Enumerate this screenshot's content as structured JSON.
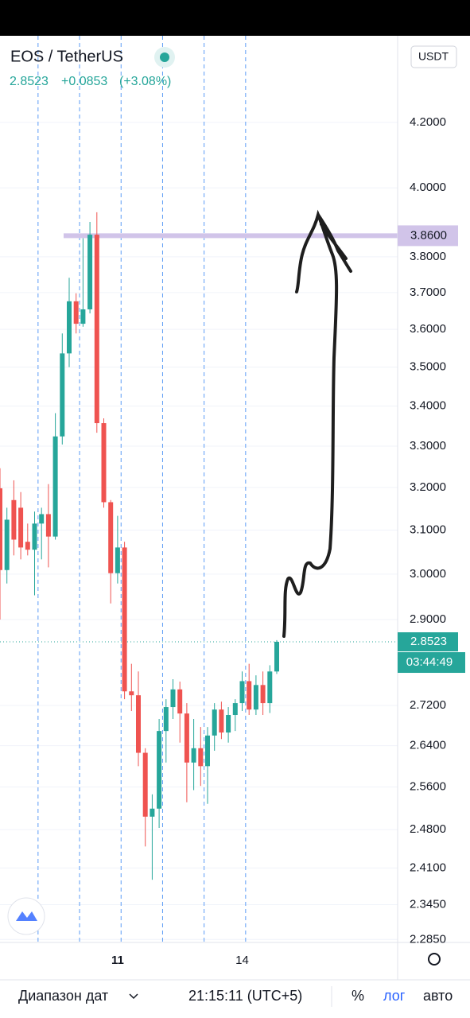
{
  "header": {
    "symbol": "EOS / TetherUS",
    "price": "2.8523",
    "change": "+0.0853",
    "change_pct": "(+3.08%)",
    "currency": "USDT"
  },
  "chart_data": {
    "type": "candlestick",
    "categories": [
      null,
      null,
      null,
      null,
      null,
      null,
      null,
      null,
      null,
      null,
      null,
      null,
      null,
      null,
      null,
      null,
      null,
      "11",
      null,
      null,
      null,
      null,
      null,
      null,
      null,
      null,
      null,
      null,
      null,
      null,
      null,
      null,
      null,
      null,
      null,
      "14",
      null,
      null,
      null,
      null,
      null
    ],
    "open": [
      3.198,
      3.009,
      3.17,
      3.152,
      3.073,
      3.055,
      3.115,
      3.137,
      3.085,
      3.324,
      3.536,
      3.676,
      3.615,
      3.654,
      3.863,
      3.357,
      3.165,
      3.002,
      3.06,
      2.749,
      2.741,
      2.626,
      2.504,
      2.519,
      2.669,
      2.717,
      2.753,
      2.704,
      2.607,
      2.635,
      2.6,
      2.66,
      2.712,
      2.666,
      2.701,
      2.725,
      2.77,
      2.712,
      2.762,
      2.725,
      2.79
    ],
    "high": [
      3.246,
      3.152,
      3.217,
      3.189,
      3.115,
      3.143,
      3.152,
      3.208,
      3.382,
      3.589,
      3.741,
      3.698,
      3.853,
      3.9,
      3.928,
      3.369,
      3.17,
      3.133,
      3.073,
      2.806,
      2.79,
      2.635,
      2.546,
      2.693,
      2.733,
      2.774,
      2.769,
      2.725,
      2.693,
      2.677,
      2.677,
      2.725,
      2.728,
      2.717,
      2.733,
      2.79,
      2.806,
      2.782,
      2.79,
      2.803,
      2.856
    ],
    "low": [
      2.9,
      2.979,
      3.042,
      3.033,
      3.042,
      2.953,
      3.033,
      3.015,
      3.078,
      3.304,
      3.5,
      3.589,
      3.607,
      3.643,
      3.333,
      3.152,
      2.935,
      2.979,
      2.733,
      2.709,
      2.6,
      2.449,
      2.389,
      2.483,
      2.607,
      2.693,
      2.646,
      2.531,
      2.554,
      2.562,
      2.528,
      2.63,
      2.653,
      2.646,
      2.669,
      2.709,
      2.701,
      2.701,
      2.701,
      2.705,
      2.785
    ],
    "close": [
      3.009,
      3.124,
      3.078,
      3.06,
      3.055,
      3.115,
      3.137,
      3.085,
      3.324,
      3.536,
      3.676,
      3.615,
      3.654,
      3.863,
      3.357,
      3.165,
      3.002,
      3.06,
      2.749,
      2.741,
      2.626,
      2.504,
      2.519,
      2.669,
      2.717,
      2.753,
      2.704,
      2.607,
      2.635,
      2.6,
      2.66,
      2.712,
      2.666,
      2.701,
      2.725,
      2.77,
      2.712,
      2.762,
      2.725,
      2.79,
      2.8523
    ],
    "up_color": "#26a69a",
    "down_color": "#ef5350",
    "log_scale": true,
    "grid": true,
    "ylim": [
      2.28,
      4.48
    ],
    "yticks": [
      {
        "value": 4.2,
        "label": "4.2000"
      },
      {
        "value": 4.0,
        "label": "4.0000"
      },
      {
        "value": 3.8,
        "label": "3.8000"
      },
      {
        "value": 3.7,
        "label": "3.7000"
      },
      {
        "value": 3.6,
        "label": "3.6000"
      },
      {
        "value": 3.5,
        "label": "3.5000"
      },
      {
        "value": 3.4,
        "label": "3.4000"
      },
      {
        "value": 3.3,
        "label": "3.3000"
      },
      {
        "value": 3.2,
        "label": "3.2000"
      },
      {
        "value": 3.1,
        "label": "3.1000"
      },
      {
        "value": 3.0,
        "label": "3.0000"
      },
      {
        "value": 2.9,
        "label": "2.9000"
      },
      {
        "value": 2.72,
        "label": "2.7200"
      },
      {
        "value": 2.64,
        "label": "2.6400"
      },
      {
        "value": 2.56,
        "label": "2.5600"
      },
      {
        "value": 2.48,
        "label": "2.4800"
      },
      {
        "value": 2.41,
        "label": "2.4100"
      },
      {
        "value": 2.345,
        "label": "2.3450"
      },
      {
        "value": 2.285,
        "label": "2.2850"
      }
    ],
    "horizontal_line": {
      "value": 3.86,
      "label": "3.8600",
      "color": "#d1c4e9"
    },
    "last_price": {
      "value": 2.8523,
      "label": "2.8523"
    },
    "countdown": "03:44:49"
  },
  "footer": {
    "range": "Диапазон дат",
    "time": "21:15:11 (UTC+5)",
    "percent": "%",
    "log": "лог",
    "auto": "авто"
  }
}
